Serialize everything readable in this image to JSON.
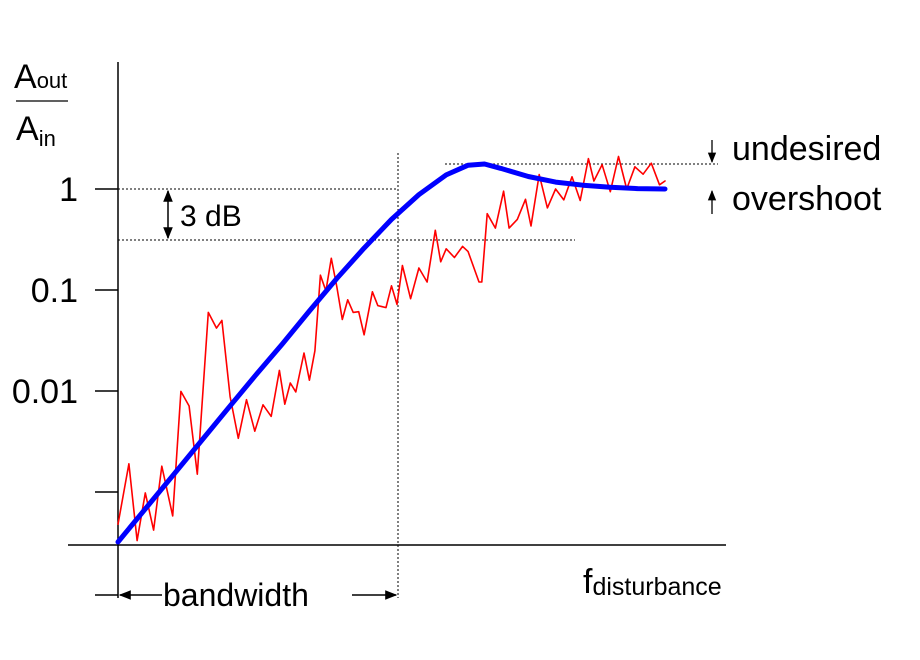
{
  "chart_data": {
    "type": "line",
    "title": "",
    "y_scale": "log",
    "ylabel": {
      "numerator": "A",
      "numerator_sub": "out",
      "denominator": "A",
      "denominator_sub": "in"
    },
    "xlabel": {
      "main": "f",
      "sub": "disturbance"
    },
    "y_ticks": [
      {
        "value": 1,
        "label": "1"
      },
      {
        "value": 0.1,
        "label": "0.1"
      },
      {
        "value": 0.01,
        "label": "0.01"
      },
      {
        "value": 0.001,
        "label": ""
      }
    ],
    "y_axis_extra_ticks": [
      0.001
    ],
    "x_range": [
      0,
      1
    ],
    "y_range": [
      0.0003,
      50
    ],
    "series": [
      {
        "color": "#0000ff",
        "points": [
          [
            0.0,
            0.00032
          ],
          [
            0.05,
            0.00068
          ],
          [
            0.1,
            0.00145
          ],
          [
            0.15,
            0.0031
          ],
          [
            0.2,
            0.0066
          ],
          [
            0.25,
            0.014
          ],
          [
            0.3,
            0.029
          ],
          [
            0.35,
            0.062
          ],
          [
            0.4,
            0.13
          ],
          [
            0.45,
            0.26
          ],
          [
            0.5,
            0.5
          ],
          [
            0.55,
            0.88
          ],
          [
            0.6,
            1.38
          ],
          [
            0.64,
            1.72
          ],
          [
            0.67,
            1.77
          ],
          [
            0.7,
            1.6
          ],
          [
            0.75,
            1.33
          ],
          [
            0.8,
            1.17
          ],
          [
            0.85,
            1.09
          ],
          [
            0.9,
            1.04
          ],
          [
            0.95,
            1.01
          ],
          [
            1.0,
            1.0
          ]
        ]
      },
      {
        "color": "#ff0000",
        "points": [
          [
            0.0,
            0.00048
          ],
          [
            0.02,
            0.0019
          ],
          [
            0.035,
            0.00033
          ],
          [
            0.05,
            0.00098
          ],
          [
            0.065,
            0.00042
          ],
          [
            0.08,
            0.0018
          ],
          [
            0.1,
            0.00058
          ],
          [
            0.115,
            0.0099
          ],
          [
            0.13,
            0.0071
          ],
          [
            0.145,
            0.0015
          ],
          [
            0.165,
            0.06
          ],
          [
            0.18,
            0.042
          ],
          [
            0.19,
            0.05
          ],
          [
            0.205,
            0.0088
          ],
          [
            0.22,
            0.0034
          ],
          [
            0.235,
            0.0082
          ],
          [
            0.25,
            0.004
          ],
          [
            0.265,
            0.0073
          ],
          [
            0.28,
            0.0056
          ],
          [
            0.295,
            0.016
          ],
          [
            0.305,
            0.0074
          ],
          [
            0.315,
            0.012
          ],
          [
            0.325,
            0.0098
          ],
          [
            0.34,
            0.0238
          ],
          [
            0.35,
            0.0128
          ],
          [
            0.36,
            0.025
          ],
          [
            0.37,
            0.14
          ],
          [
            0.38,
            0.098
          ],
          [
            0.39,
            0.206
          ],
          [
            0.4,
            0.108
          ],
          [
            0.41,
            0.051
          ],
          [
            0.42,
            0.08
          ],
          [
            0.43,
            0.06
          ],
          [
            0.44,
            0.061
          ],
          [
            0.45,
            0.036
          ],
          [
            0.465,
            0.096
          ],
          [
            0.475,
            0.07
          ],
          [
            0.49,
            0.067
          ],
          [
            0.5,
            0.11
          ],
          [
            0.51,
            0.072
          ],
          [
            0.52,
            0.175
          ],
          [
            0.535,
            0.082
          ],
          [
            0.55,
            0.165
          ],
          [
            0.565,
            0.12
          ],
          [
            0.58,
            0.39
          ],
          [
            0.59,
            0.19
          ],
          [
            0.6,
            0.256
          ],
          [
            0.615,
            0.21
          ],
          [
            0.63,
            0.27
          ],
          [
            0.64,
            0.24
          ],
          [
            0.66,
            0.12
          ],
          [
            0.665,
            0.12
          ],
          [
            0.675,
            0.57
          ],
          [
            0.69,
            0.41
          ],
          [
            0.705,
            0.95
          ],
          [
            0.715,
            0.41
          ],
          [
            0.73,
            0.5
          ],
          [
            0.745,
            0.79
          ],
          [
            0.755,
            0.43
          ],
          [
            0.77,
            1.39
          ],
          [
            0.785,
            0.65
          ],
          [
            0.8,
            1.0
          ],
          [
            0.815,
            0.78
          ],
          [
            0.83,
            1.32
          ],
          [
            0.845,
            0.77
          ],
          [
            0.86,
            2.0
          ],
          [
            0.87,
            1.2
          ],
          [
            0.885,
            1.74
          ],
          [
            0.9,
            0.94
          ],
          [
            0.915,
            2.1
          ],
          [
            0.93,
            1.0
          ],
          [
            0.945,
            1.66
          ],
          [
            0.96,
            1.4
          ],
          [
            0.975,
            1.8
          ],
          [
            0.99,
            1.1
          ],
          [
            1.0,
            1.2
          ]
        ]
      }
    ],
    "annotations": {
      "three_db": "3 dB",
      "bandwidth": "bandwidth",
      "overshoot_line1": "undesired",
      "overshoot_line2": "overshoot"
    }
  }
}
